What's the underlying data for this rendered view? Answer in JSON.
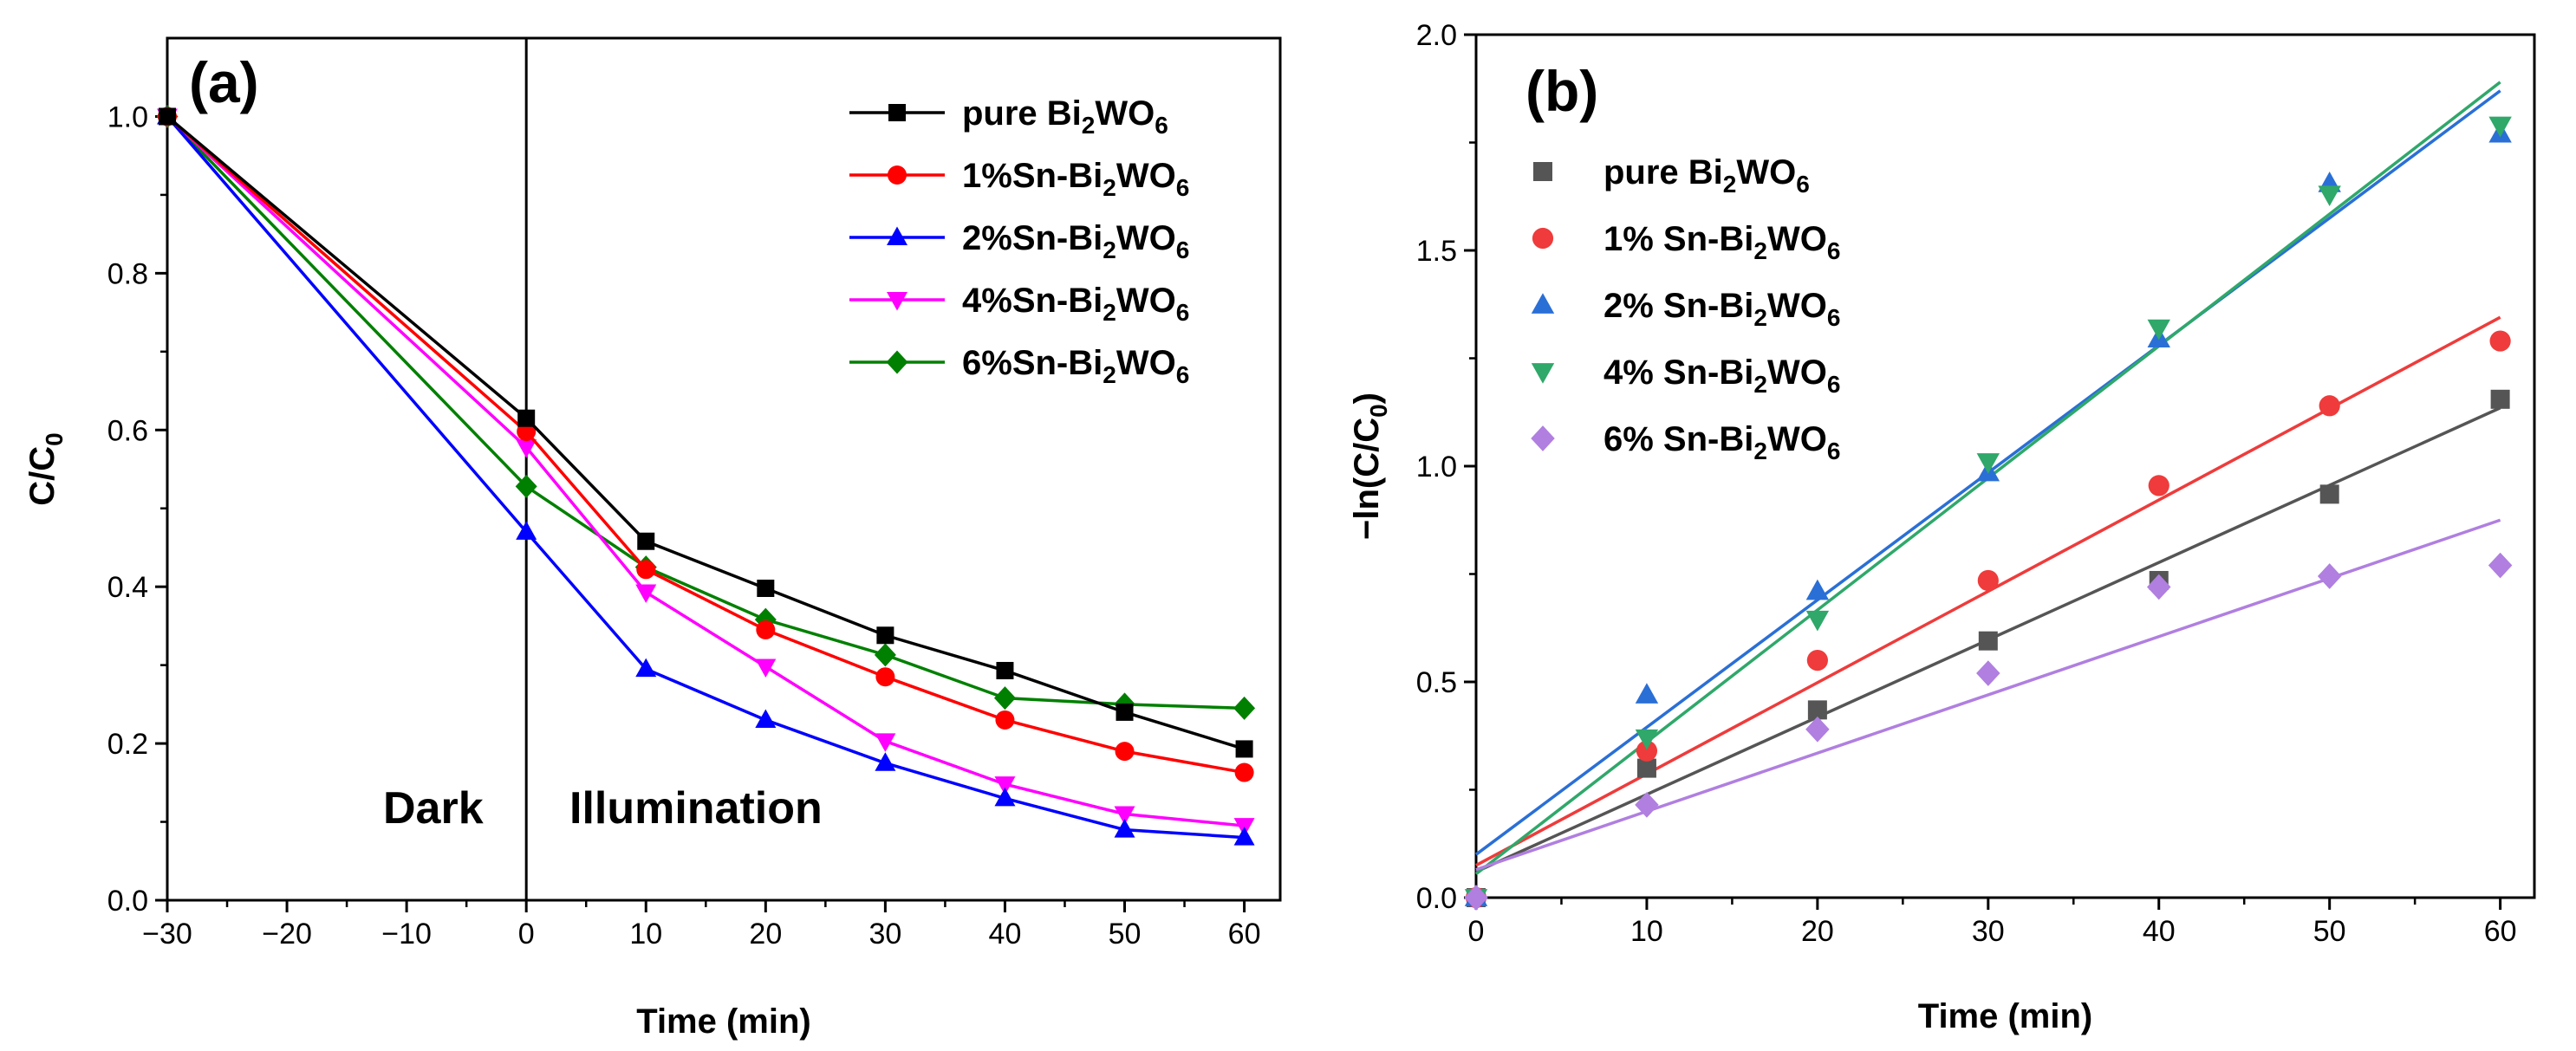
{
  "chart_data": [
    {
      "type": "line",
      "panel": "(a)",
      "xlabel": "Time (min)",
      "ylabel": {
        "main": "C/C",
        "sub": "0"
      },
      "xlim": [
        -30,
        63
      ],
      "ylim": [
        0,
        1.1
      ],
      "xticks": [
        "−30",
        "−20",
        "−10",
        "0",
        "10",
        "20",
        "30",
        "40",
        "50",
        "60"
      ],
      "yticks": [
        "0.0",
        "0.2",
        "0.4",
        "0.6",
        "0.8",
        "1.0"
      ],
      "annotations": [
        "Dark",
        "Illumination"
      ],
      "divider_x": 0,
      "legend_position": "top-right",
      "x": [
        -30,
        0,
        10,
        20,
        30,
        40,
        50,
        60
      ],
      "series": [
        {
          "name": {
            "pre": "pure Bi",
            "s1": "2",
            "mid": "WO",
            "s2": "6"
          },
          "color": "#000000",
          "marker": "square",
          "values": [
            1.0,
            0.615,
            0.458,
            0.398,
            0.338,
            0.293,
            0.24,
            0.193
          ]
        },
        {
          "name": {
            "pre": "1%Sn-Bi",
            "s1": "2",
            "mid": "WO",
            "s2": "6"
          },
          "color": "#ff0000",
          "marker": "circle",
          "values": [
            1.0,
            0.598,
            0.422,
            0.345,
            0.285,
            0.23,
            0.19,
            0.163
          ]
        },
        {
          "name": {
            "pre": "2%Sn-Bi",
            "s1": "2",
            "mid": "WO",
            "s2": "6"
          },
          "color": "#0000ff",
          "marker": "triangle-up",
          "values": [
            1.0,
            0.47,
            0.295,
            0.23,
            0.175,
            0.13,
            0.09,
            0.08
          ]
        },
        {
          "name": {
            "pre": "4%Sn-Bi",
            "s1": "2",
            "mid": "WO",
            "s2": "6"
          },
          "color": "#ff00ff",
          "marker": "triangle-down",
          "values": [
            1.0,
            0.578,
            0.393,
            0.298,
            0.203,
            0.148,
            0.11,
            0.095
          ]
        },
        {
          "name": {
            "pre": "6%Sn-Bi",
            "s1": "2",
            "mid": "WO",
            "s2": "6"
          },
          "color": "#008000",
          "marker": "diamond",
          "values": [
            1.0,
            0.528,
            0.425,
            0.358,
            0.313,
            0.258,
            0.25,
            0.245
          ]
        }
      ]
    },
    {
      "type": "scatter",
      "panel": "(b)",
      "xlabel": "Time (min)",
      "ylabel": {
        "main": "−ln(C/C",
        "sub": "0",
        "end": ")"
      },
      "xlim": [
        0,
        62
      ],
      "ylim": [
        0,
        2.0
      ],
      "xticks": [
        "0",
        "10",
        "20",
        "30",
        "40",
        "50",
        "60"
      ],
      "yticks": [
        "0.0",
        "0.5",
        "1.0",
        "1.5",
        "2.0"
      ],
      "legend_position": "top-left",
      "x": [
        0,
        10,
        20,
        30,
        40,
        50,
        60
      ],
      "series": [
        {
          "name": {
            "pre": "pure Bi",
            "s1": "2",
            "mid": "WO",
            "s2": "6"
          },
          "color": "#555555",
          "marker": "square",
          "values": [
            0.0,
            0.3,
            0.435,
            0.595,
            0.735,
            0.935,
            1.155
          ],
          "fit": [
            0.06,
            1.135
          ]
        },
        {
          "name": {
            "pre": "1% Sn-Bi",
            "s1": "2",
            "mid": "WO",
            "s2": "6"
          },
          "color": "#ef3b3b",
          "marker": "circle",
          "values": [
            0.0,
            0.34,
            0.55,
            0.735,
            0.955,
            1.14,
            1.29
          ],
          "fit": [
            0.075,
            1.345
          ]
        },
        {
          "name": {
            "pre": "2% Sn-Bi",
            "s1": "2",
            "mid": "WO",
            "s2": "6"
          },
          "color": "#2a6fd6",
          "marker": "triangle-up",
          "values": [
            0.0,
            0.47,
            0.71,
            0.985,
            1.295,
            1.655,
            1.77
          ],
          "fit": [
            0.1,
            1.87
          ]
        },
        {
          "name": {
            "pre": "4% Sn-Bi",
            "s1": "2",
            "mid": "WO",
            "s2": "6"
          },
          "color": "#2fa86a",
          "marker": "triangle-down",
          "values": [
            0.0,
            0.37,
            0.645,
            1.01,
            1.32,
            1.63,
            1.79
          ],
          "fit": [
            0.055,
            1.89
          ]
        },
        {
          "name": {
            "pre": "6% Sn-Bi",
            "s1": "2",
            "mid": "WO",
            "s2": "6"
          },
          "color": "#b07fe0",
          "marker": "diamond",
          "values": [
            0.0,
            0.215,
            0.39,
            0.52,
            0.72,
            0.745,
            0.77
          ],
          "fit": [
            0.065,
            0.875
          ]
        }
      ]
    }
  ]
}
